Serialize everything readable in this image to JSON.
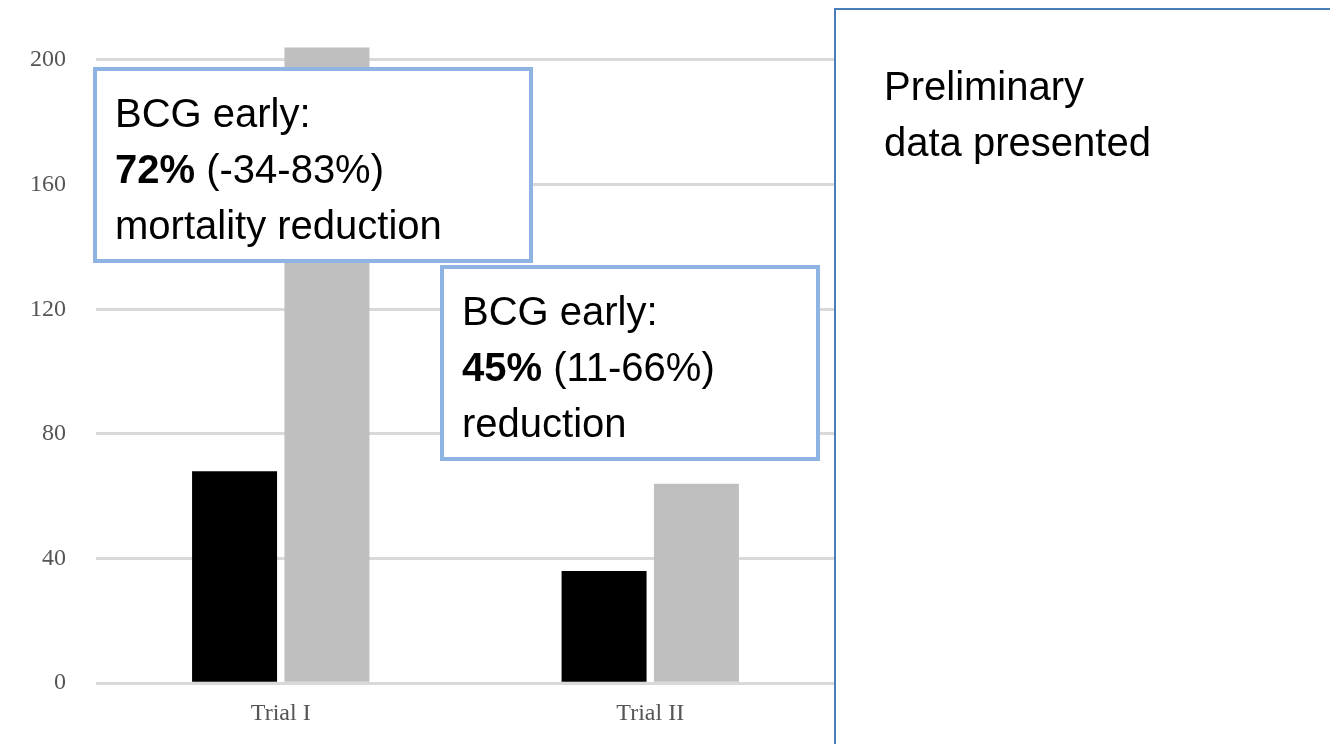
{
  "chart_data": {
    "type": "bar",
    "categories": [
      "Trial I",
      "Trial II"
    ],
    "series": [
      {
        "color": "#000000",
        "values": [
          68,
          36
        ]
      },
      {
        "color": "#bfbfbf",
        "values": [
          204,
          64
        ]
      }
    ],
    "ylim": [
      0,
      205
    ],
    "yticks": [
      0,
      40,
      80,
      120,
      160,
      200
    ],
    "grid": "y",
    "legend": false,
    "annotations": [
      "BCG early:\n72% (-34-83%)\nmortality reduction",
      "BCG early:\n45% (11-66%)\nreduction",
      "Preliminary\ndata presented"
    ]
  }
}
